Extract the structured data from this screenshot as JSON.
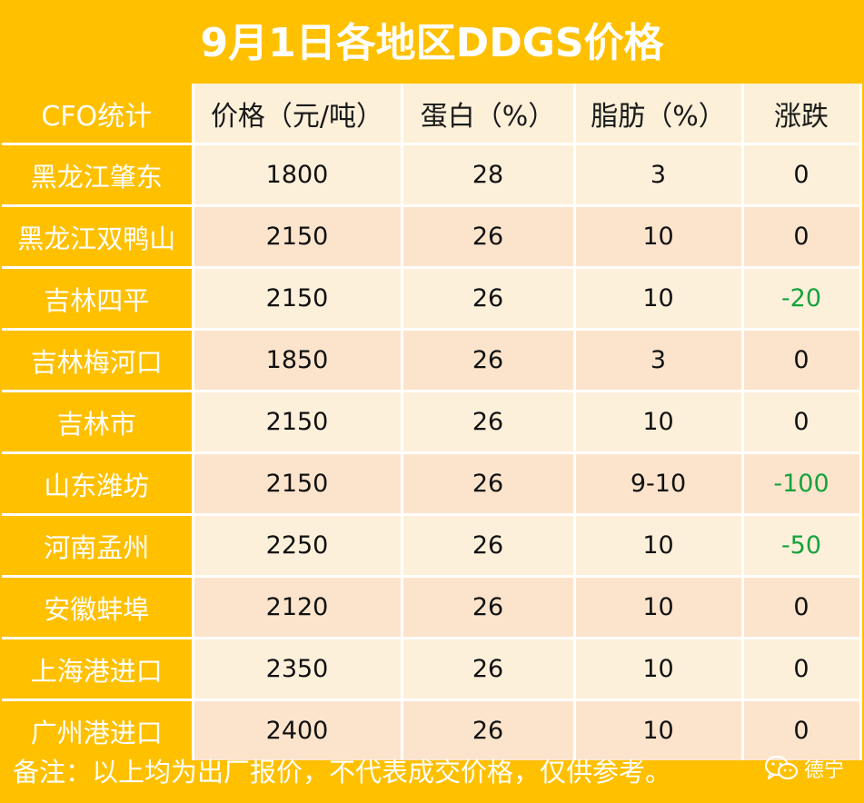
{
  "title": "9月1日各地区DDGS价格",
  "headers": [
    "CFO统计",
    "价格（元/吨）",
    "蛋白（%）",
    "脂肪（%）",
    "涨跌"
  ],
  "rows": [
    {
      "region": "黑龙江肇东",
      "price": "1800",
      "protein": "28",
      "fat": "3",
      "change": "0"
    },
    {
      "region": "黑龙江双鸭山",
      "price": "2150",
      "protein": "26",
      "fat": "10",
      "change": "0"
    },
    {
      "region": "吉林四平",
      "price": "2150",
      "protein": "26",
      "fat": "10",
      "change": "-20"
    },
    {
      "region": "吉林梅河口",
      "price": "1850",
      "protein": "26",
      "fat": "3",
      "change": "0"
    },
    {
      "region": "吉林市",
      "price": "2150",
      "protein": "26",
      "fat": "10",
      "change": "0"
    },
    {
      "region": "山东潍坊",
      "price": "2150",
      "protein": "26",
      "fat": "9-10",
      "change": "-100"
    },
    {
      "region": "河南孟州",
      "price": "2250",
      "protein": "26",
      "fat": "10",
      "change": "-50"
    },
    {
      "region": "安徽蚌埠",
      "price": "2120",
      "protein": "26",
      "fat": "10",
      "change": "0"
    },
    {
      "region": "上海港进口",
      "price": "2350",
      "protein": "26",
      "fat": "10",
      "change": "0"
    },
    {
      "region": "广州港进口",
      "price": "2400",
      "protein": "26",
      "fat": "10",
      "change": "0"
    }
  ],
  "note": "备注：以上均为出厂报价，不代表成交价格，仅供参考。",
  "brand": {
    "name": "德宁",
    "icon": "wechat-icon"
  },
  "colors": {
    "accent": "#ffc000",
    "row_light": "#fdf0da",
    "row_dark": "#fce4cc",
    "negative": "#14a33c"
  }
}
